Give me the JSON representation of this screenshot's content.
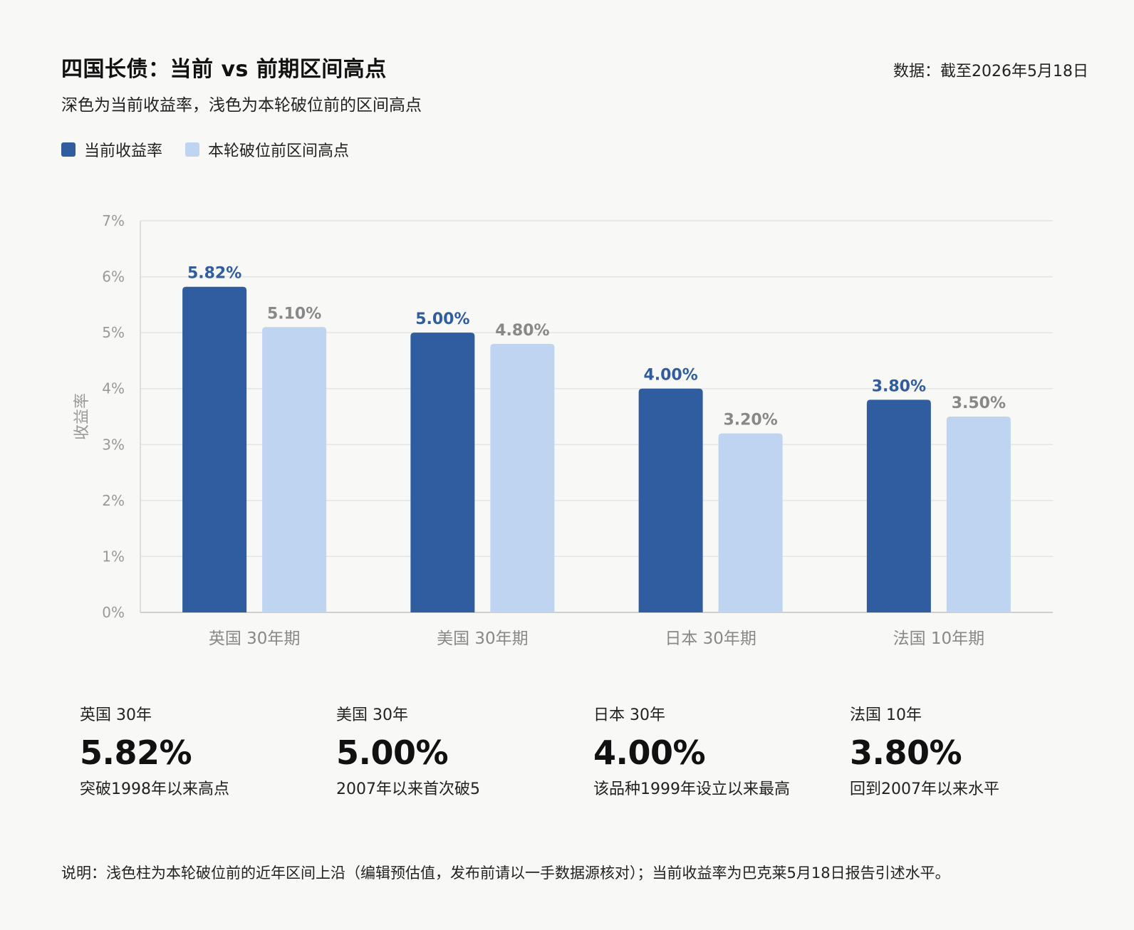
{
  "header": {
    "title": "四国长债：当前 vs 前期区间高点",
    "subtitle": "深色为当前收益率，浅色为本轮破位前的区间高点",
    "source": "数据：截至2026年5月18日"
  },
  "legend": [
    {
      "label": "当前收益率",
      "color": "#2f5d9f"
    },
    {
      "label": "本轮破位前区间高点",
      "color": "#bfd4f1"
    }
  ],
  "chart_data": {
    "type": "bar",
    "categories": [
      "英国 30年期",
      "美国 30年期",
      "日本 30年期",
      "法国 10年期"
    ],
    "series": [
      {
        "name": "当前收益率",
        "values": [
          5.82,
          5.0,
          4.0,
          3.8
        ],
        "labels": [
          "5.82%",
          "5.00%",
          "4.00%",
          "3.80%"
        ],
        "color": "#2f5d9f",
        "label_color": "#2f5d9f"
      },
      {
        "name": "本轮破位前区间高点",
        "values": [
          5.1,
          4.8,
          3.2,
          3.5
        ],
        "labels": [
          "5.10%",
          "4.80%",
          "3.20%",
          "3.50%"
        ],
        "color": "#bfd4f1",
        "label_color": "#888888"
      }
    ],
    "ylabel": "收益率",
    "ylim": [
      0,
      7
    ],
    "yticks": [
      "0%",
      "1%",
      "2%",
      "3%",
      "4%",
      "5%",
      "6%",
      "7%"
    ],
    "grid": true
  },
  "stats": [
    {
      "label": "英国 30年",
      "value": "5.82%",
      "note": "突破1998年以来高点"
    },
    {
      "label": "美国 30年",
      "value": "5.00%",
      "note": "2007年以来首次破5"
    },
    {
      "label": "日本 30年",
      "value": "4.00%",
      "note": "该品种1999年设立以来最高"
    },
    {
      "label": "法国 10年",
      "value": "3.80%",
      "note": "回到2007年以来水平"
    }
  ],
  "footnote": "说明：浅色柱为本轮破位前的近年区间上沿（编辑预估值，发布前请以一手数据源核对）；当前收益率为巴克莱5月18日报告引述水平。"
}
